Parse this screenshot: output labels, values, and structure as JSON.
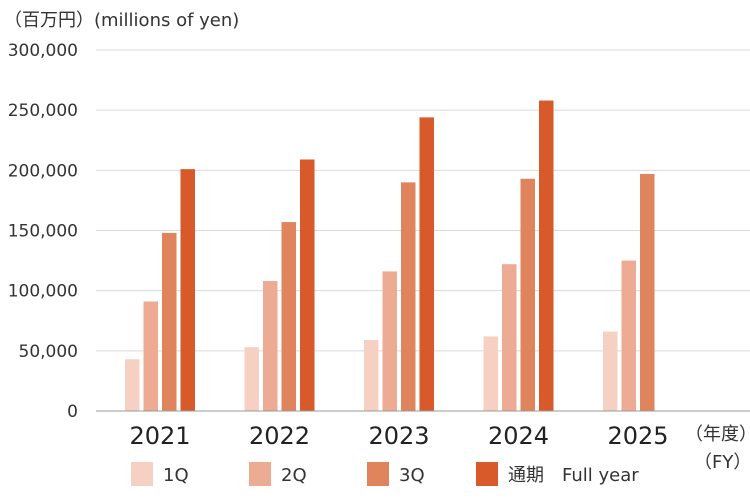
{
  "chart_data": {
    "type": "bar",
    "unit_label": "（百万円）(millions of yen)",
    "x_unit_label": "（年度）",
    "x_unit_label_en": "（FY）",
    "categories": [
      "2021",
      "2022",
      "2023",
      "2024",
      "2025"
    ],
    "series": [
      {
        "name": "1Q",
        "color": "#f6d1c3",
        "values": [
          43000,
          53000,
          59000,
          62000,
          66000
        ]
      },
      {
        "name": "2Q",
        "color": "#ecab92",
        "values": [
          91000,
          108000,
          116000,
          122000,
          125000
        ]
      },
      {
        "name": "3Q",
        "color": "#e0845e",
        "values": [
          148000,
          157000,
          190000,
          193000,
          197000
        ]
      },
      {
        "name": "通期　Full year",
        "color": "#d85a2a",
        "values": [
          201000,
          209000,
          244000,
          258000,
          null
        ]
      }
    ],
    "ylim": [
      0,
      300000
    ],
    "yticks": [
      "0",
      "50,000",
      "100,000",
      "150,000",
      "200,000",
      "250,000",
      "300,000"
    ],
    "grid": true,
    "legend_position": "bottom"
  }
}
